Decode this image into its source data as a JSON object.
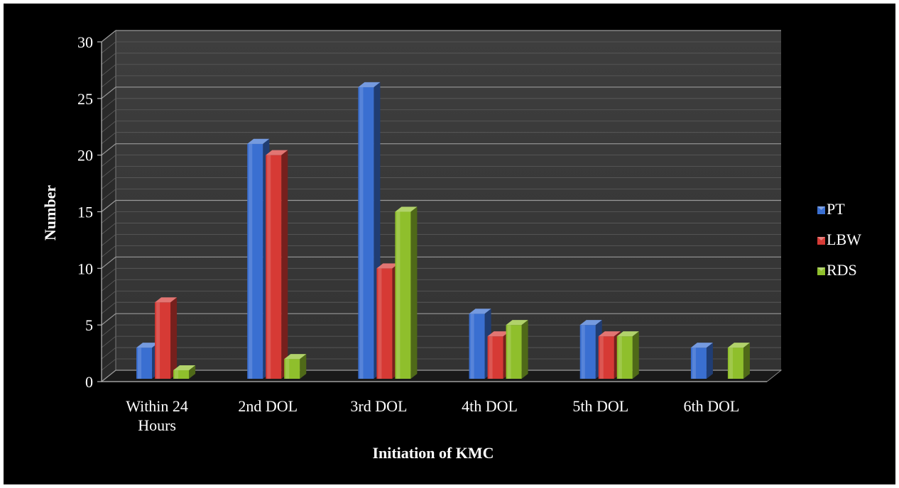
{
  "chart_data": {
    "type": "bar",
    "title": "",
    "xlabel": "Initiation of KMC",
    "ylabel": "Number",
    "ylim": [
      0,
      30
    ],
    "yticks": [
      "0",
      "5",
      "10",
      "15",
      "20",
      "25",
      "30"
    ],
    "categories": [
      [
        "Within 24",
        "Hours"
      ],
      [
        "2nd DOL"
      ],
      [
        "3rd DOL"
      ],
      [
        "4th DOL"
      ],
      [
        "5th DOL"
      ],
      [
        "6th DOL"
      ]
    ],
    "series": [
      {
        "name": "PT",
        "color": "#3a6fd1",
        "values": [
          3,
          21,
          26,
          6,
          5,
          3
        ]
      },
      {
        "name": "LBW",
        "color": "#d63a35",
        "values": [
          7,
          20,
          10,
          4,
          4,
          0
        ]
      },
      {
        "name": "RDS",
        "color": "#8fbf2c",
        "values": [
          1,
          2,
          15,
          5,
          4,
          3
        ]
      }
    ],
    "grid": true,
    "legend": "right"
  }
}
